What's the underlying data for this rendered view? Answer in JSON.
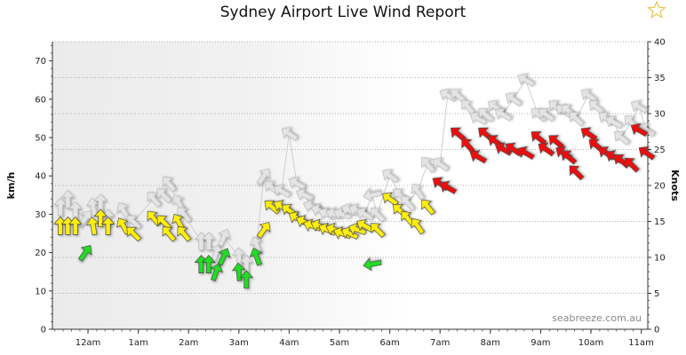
{
  "title": "Sydney Airport Live Wind Report",
  "star_icon": "star-outline-icon",
  "credit": "seabreeze.com.au",
  "colors": {
    "calm": "#22dd22",
    "moderate": "#ffee11",
    "strong": "#ee1111",
    "gust": "#e4e4e4",
    "shade": "#ececec"
  },
  "chart_data": {
    "type": "scatter",
    "title": "Sydney Airport Live Wind Report",
    "ylabel_left": "km/h",
    "ylabel_right": "Knots",
    "ylim_left": [
      0,
      75
    ],
    "ylim_right": [
      0,
      40
    ],
    "yticks_left": [
      "0",
      "10",
      "20",
      "30",
      "40",
      "50",
      "60",
      "70"
    ],
    "yticks_right": [
      "0",
      "5",
      "10",
      "15",
      "20",
      "25",
      "30",
      "35",
      "40"
    ],
    "x_tick_labels": [
      "12am",
      "1am",
      "2am",
      "3am",
      "4am",
      "5am",
      "6am",
      "7am",
      "8am",
      "9am",
      "10am",
      "11am"
    ],
    "night_shading": "until about 6:45am",
    "series": [
      {
        "name": "Wind",
        "x_hours": [
          -0.55,
          -0.4,
          -0.25,
          -0.05,
          0.1,
          0.25,
          0.4,
          0.7,
          0.9,
          1.3,
          1.5,
          1.6,
          1.8,
          1.9,
          2.25,
          2.4,
          2.55,
          2.7,
          3.0,
          3.15,
          3.35,
          3.5,
          3.65,
          3.85,
          4.0,
          4.15,
          4.3,
          4.45,
          4.6,
          4.75,
          4.9,
          5.05,
          5.2,
          5.35,
          5.5,
          5.65,
          5.75,
          6.0,
          6.2,
          6.35,
          6.55,
          6.75,
          7.0,
          7.15,
          7.35,
          7.55,
          7.75,
          7.9,
          8.1,
          8.25,
          8.45,
          8.7,
          8.95,
          9.1,
          9.3,
          9.45,
          9.55,
          9.7,
          9.95,
          10.1,
          10.3,
          10.45,
          10.6,
          10.8,
          10.95,
          11.1
        ],
        "speeds_kmh": [
          27,
          27,
          27,
          20,
          27,
          29,
          27,
          27,
          25,
          29,
          28,
          25,
          28,
          25,
          17,
          17,
          15,
          19,
          15,
          13,
          19,
          26,
          32,
          32,
          31,
          29,
          28,
          27,
          27,
          26,
          26,
          25,
          25,
          26,
          27,
          17,
          26,
          34,
          31,
          29,
          27,
          32,
          38,
          37,
          51,
          48,
          45,
          51,
          49,
          47,
          47,
          46,
          50,
          47,
          49,
          46,
          45,
          41,
          51,
          48,
          46,
          45,
          44,
          43,
          52,
          46
        ],
        "gusts_kmh": [
          32,
          34,
          31,
          29,
          32,
          33,
          29,
          31,
          28,
          34,
          35,
          38,
          33,
          30,
          23,
          23,
          20,
          24,
          19,
          17,
          22,
          40,
          37,
          36,
          51,
          38,
          35,
          32,
          31,
          30,
          30,
          30,
          31,
          31,
          30,
          35,
          30,
          40,
          35,
          33,
          36,
          43,
          43,
          61,
          61,
          58,
          55,
          56,
          58,
          56,
          60,
          65,
          56,
          56,
          58,
          57,
          57,
          55,
          61,
          58,
          55,
          54,
          50,
          54,
          58,
          52
        ],
        "direction_deg": [
          180,
          180,
          180,
          215,
          170,
          180,
          180,
          150,
          135,
          140,
          135,
          140,
          150,
          140,
          180,
          180,
          200,
          205,
          175,
          180,
          160,
          215,
          130,
          120,
          125,
          120,
          115,
          110,
          110,
          115,
          110,
          110,
          115,
          110,
          120,
          80,
          135,
          125,
          130,
          140,
          145,
          140,
          125,
          120,
          130,
          140,
          120,
          130,
          125,
          120,
          125,
          120,
          130,
          125,
          130,
          125,
          130,
          135,
          125,
          130,
          125,
          120,
          130,
          135,
          120,
          125
        ]
      }
    ],
    "color_bands_kmh": {
      "green": "below 22",
      "yellow": "22 to 34",
      "red": "above 34"
    }
  }
}
